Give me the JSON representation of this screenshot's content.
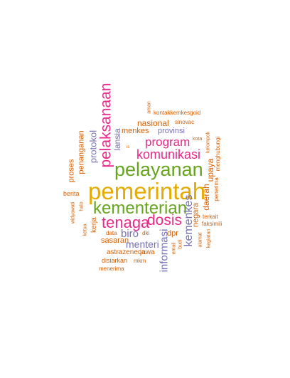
{
  "colors": {
    "orange": "#d95f02",
    "gold": "#e6ab02",
    "green": "#66a61e",
    "pink": "#e7298a",
    "purple": "#7570b3",
    "brown": "#a6761d",
    "teal": "#1b9e77"
  },
  "words": {
    "pemerintah": "pemerintah",
    "pelayanan": "pelayanan",
    "kementerian": "kementerian",
    "tenaga": "tenaga",
    "dosis": "dosis",
    "pelaksanaan": "pelaksanaan",
    "komunikasi": "komunikasi",
    "program": "program",
    "kemenkes": "kemenkes",
    "biro": "biro",
    "menteri": "menteri",
    "informasi": "informasi",
    "protokol": "protokol",
    "lansia": "lansia",
    "penanganan": "penanganan",
    "proses": "proses",
    "nasional": "nasional",
    "menkes": "menkes",
    "provinsi": "provinsi",
    "kontakkemkesgoid": "kontakkemkesgoid",
    "sinovac": "sinovac",
    "aman": "aman",
    "kota": "kota",
    "is": "is",
    "upaya": "upaya",
    "kelompok": "kelompok",
    "menghubungi": "menghubungi",
    "penerima": "penerima",
    "daerah": "daerah",
    "negara": "negara",
    "terkait": "terkait",
    "faksimili": "faksimili",
    "kegiatan": "kegiatan",
    "alamat": "alamat",
    "budi": "budi",
    "email": "email",
    "dpr": "dpr",
    "berita": "berita",
    "widyawati": "widyawati",
    "halo": "halo",
    "ketua": "ketua",
    "kerja": "kerja",
    "data": "data",
    "dki": "dki",
    "sasaran": "sasaran",
    "astrazeneca": "astrazeneca",
    "jawa": "jawa",
    "disiarkan": "disiarkan",
    "mkm": "mkm",
    "menerima": "menerima"
  }
}
